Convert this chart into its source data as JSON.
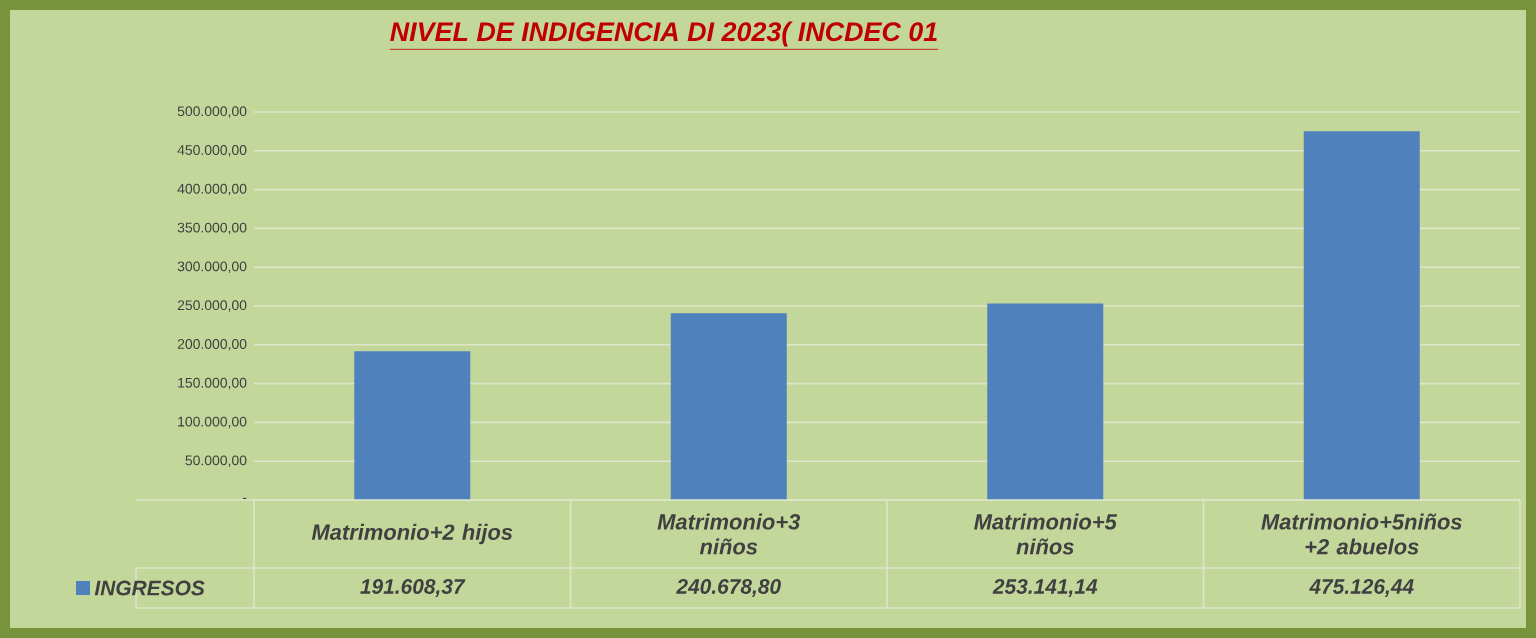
{
  "chart_data": {
    "type": "bar",
    "title": "NIVEL DE INDIGENCIA DI  2023( INCDEC  01",
    "categories": [
      "Matrimonio+2 hijos",
      "Matrimonio+3 niños",
      "Matrimonio+5 niños",
      "Matrimonio+5niños +2 abuelos"
    ],
    "series": [
      {
        "name": "INGRESOS",
        "color": "#4f81bd",
        "values": [
          191608.37,
          240678.8,
          253141.14,
          475126.44
        ],
        "value_labels": [
          "191.608,37",
          "240.678,80",
          "253.141,14",
          "475.126,44"
        ]
      }
    ],
    "ylim": [
      0,
      500000
    ],
    "yticks": [
      {
        "value": 0,
        "label": "-"
      },
      {
        "value": 50000,
        "label": "50.000,00"
      },
      {
        "value": 100000,
        "label": "100.000,00"
      },
      {
        "value": 150000,
        "label": "150.000,00"
      },
      {
        "value": 200000,
        "label": "200.000,00"
      },
      {
        "value": 250000,
        "label": "250.000,00"
      },
      {
        "value": 300000,
        "label": "300.000,00"
      },
      {
        "value": 350000,
        "label": "350.000,00"
      },
      {
        "value": 400000,
        "label": "400.000,00"
      },
      {
        "value": 450000,
        "label": "450.000,00"
      },
      {
        "value": 500000,
        "label": "500.000,00"
      }
    ],
    "grid": "y",
    "legend": "bottom"
  }
}
